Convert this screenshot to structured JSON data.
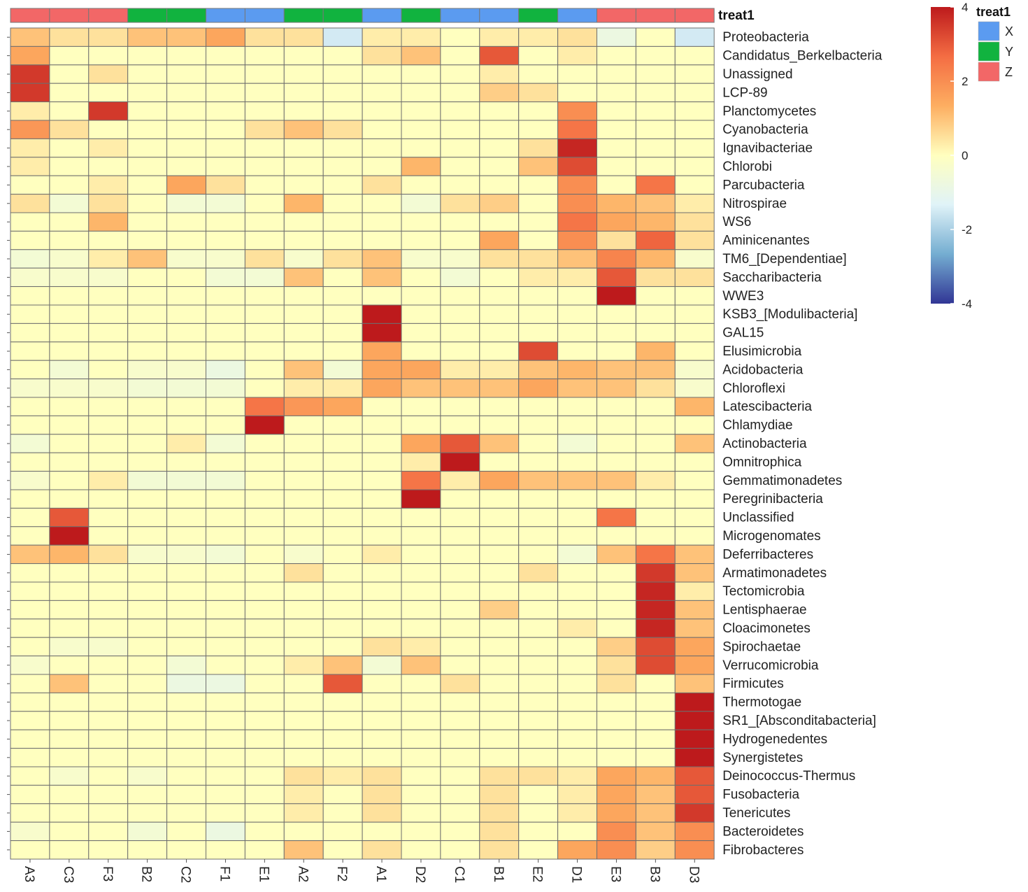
{
  "chart_data": {
    "type": "heatmap",
    "annotation_title": "treat1",
    "columns": [
      "A3",
      "C3",
      "F3",
      "B2",
      "C2",
      "F1",
      "E1",
      "A2",
      "F2",
      "A1",
      "D2",
      "C1",
      "B1",
      "E2",
      "D1",
      "E3",
      "B3",
      "D3"
    ],
    "column_groups": [
      "Z",
      "Z",
      "Z",
      "Y",
      "Y",
      "X",
      "X",
      "Y",
      "Y",
      "X",
      "Y",
      "X",
      "X",
      "Y",
      "X",
      "Z",
      "Z",
      "Z"
    ],
    "rows": [
      "Proteobacteria",
      "Candidatus_Berkelbacteria",
      "Unassigned",
      "LCP-89",
      "Planctomycetes",
      "Cyanobacteria",
      "Ignavibacteriae",
      "Chlorobi",
      "Parcubacteria",
      "Nitrospirae",
      "WS6",
      "Aminicenantes",
      "TM6_[Dependentiae]",
      "Saccharibacteria",
      "WWE3",
      "KSB3_[Modulibacteria]",
      "GAL15",
      "Elusimicrobia",
      "Acidobacteria",
      "Chloroflexi",
      "Latescibacteria",
      "Chlamydiae",
      "Actinobacteria",
      "Omnitrophica",
      "Gemmatimonadetes",
      "Peregrinibacteria",
      "Unclassified",
      "Microgenomates",
      "Deferribacteres",
      "Armatimonadetes",
      "Tectomicrobia",
      "Lentisphaerae",
      "Cloacimonetes",
      "Spirochaetae",
      "Verrucomicrobia",
      "Firmicutes",
      "Thermotogae",
      "SR1_[Absconditabacteria]",
      "Hydrogenedentes",
      "Synergistetes",
      "Deinococcus-Thermus",
      "Fusobacteria",
      "Tenericutes",
      "Bacteroidetes",
      "Fibrobacteres"
    ],
    "values": [
      [
        1,
        0.5,
        0.5,
        1,
        1,
        1.5,
        0.5,
        0.5,
        -1.5,
        0.3,
        0.3,
        0,
        0.3,
        0.3,
        0.5,
        -0.8,
        0,
        -1.5
      ],
      [
        1.5,
        0,
        0,
        0,
        0,
        0,
        0,
        0,
        0,
        0.5,
        1,
        0,
        3,
        0,
        0.3,
        0,
        0,
        0
      ],
      [
        3.5,
        0,
        0.5,
        0,
        0,
        0,
        0,
        0,
        0,
        0,
        0,
        0,
        0.3,
        0,
        0,
        0,
        0,
        0
      ],
      [
        3.5,
        0,
        0,
        0,
        0,
        0,
        0,
        0,
        0,
        0,
        0,
        0,
        0.8,
        0.5,
        0,
        0,
        0,
        0
      ],
      [
        0.3,
        0,
        3.5,
        0,
        0,
        0,
        0,
        0,
        0,
        0,
        0,
        0,
        0,
        0,
        2,
        0,
        0,
        0
      ],
      [
        1.8,
        0.5,
        0,
        0,
        0,
        0,
        0.5,
        1,
        0.5,
        0,
        0,
        0,
        0,
        0,
        2.5,
        0,
        0,
        0
      ],
      [
        0.3,
        0,
        0.3,
        0,
        0,
        0,
        0,
        0,
        0,
        0,
        0,
        0,
        0,
        0.5,
        3.8,
        0,
        0,
        0
      ],
      [
        0.3,
        0,
        0,
        0,
        0,
        0,
        0,
        0,
        0,
        0,
        1.2,
        0,
        0,
        1,
        3.2,
        0,
        0,
        0
      ],
      [
        0,
        0,
        0.3,
        0,
        1.5,
        0.5,
        0,
        0,
        0,
        0.5,
        0,
        0,
        0,
        0,
        2,
        0,
        2.5,
        0
      ],
      [
        0.5,
        -0.5,
        0.5,
        0,
        -0.5,
        -0.5,
        0,
        1.2,
        0,
        0,
        -0.5,
        0.5,
        0.8,
        0,
        2,
        1.2,
        1,
        0.3
      ],
      [
        0,
        0,
        1.2,
        0,
        0,
        0,
        0,
        0,
        0,
        0,
        0,
        0,
        0,
        0,
        2.5,
        1.5,
        1.2,
        0.5
      ],
      [
        0,
        0,
        0,
        0,
        0,
        0,
        0,
        0,
        0,
        0,
        0,
        0,
        1.5,
        0,
        2,
        0.5,
        2.8,
        0.5
      ],
      [
        -0.5,
        -0.3,
        0.3,
        1,
        -0.3,
        -0.3,
        0.5,
        -0.3,
        0.5,
        1,
        -0.3,
        -0.3,
        0.5,
        0.5,
        1,
        2.2,
        1.2,
        -0.3
      ],
      [
        -0.3,
        -0.3,
        -0.3,
        0,
        0,
        -0.5,
        -0.5,
        1,
        0,
        1,
        0,
        -0.5,
        0,
        0.3,
        0.3,
        3,
        0.5,
        0.5
      ],
      [
        0,
        0,
        0,
        0,
        0,
        0,
        0,
        0,
        0,
        0,
        0,
        0,
        0,
        0,
        0,
        4,
        0,
        0
      ],
      [
        0,
        0,
        0,
        0,
        0,
        0,
        0,
        0,
        0,
        4,
        0,
        0,
        0,
        0,
        0,
        0,
        0,
        0
      ],
      [
        0,
        0,
        0,
        0,
        0,
        0,
        0,
        0,
        0,
        4,
        0,
        0,
        0,
        0,
        0,
        0,
        0,
        0
      ],
      [
        0,
        0,
        0,
        0,
        0,
        0,
        0,
        0,
        0,
        1.5,
        0,
        0,
        0,
        3.2,
        0,
        0,
        1.2,
        0
      ],
      [
        0,
        -0.5,
        0,
        -0.3,
        -0.3,
        -0.8,
        0,
        1,
        -0.5,
        1.5,
        1.5,
        0.3,
        0.3,
        1,
        1.2,
        1,
        1,
        -0.3
      ],
      [
        -0.3,
        -0.3,
        -0.3,
        -0.5,
        -0.5,
        -0.5,
        0,
        0.3,
        0.3,
        1.5,
        1,
        1,
        1,
        1.5,
        1,
        1,
        0.5,
        -0.3
      ],
      [
        0,
        0,
        0,
        0,
        0,
        0,
        2.5,
        1.8,
        1.5,
        0,
        0,
        0,
        0,
        0,
        0,
        0,
        0,
        1.2
      ],
      [
        0,
        0,
        0,
        0,
        0,
        0,
        4,
        0,
        0,
        0,
        0,
        0,
        0,
        0,
        0,
        0,
        0,
        0
      ],
      [
        -0.5,
        0,
        0,
        0,
        0.3,
        -0.5,
        0,
        0,
        0,
        0,
        1.5,
        3,
        1,
        0,
        -0.5,
        0,
        0,
        1
      ],
      [
        0,
        0,
        0,
        0,
        0,
        0,
        0,
        0,
        0,
        0,
        0.3,
        4,
        0,
        0,
        0,
        0,
        0,
        0
      ],
      [
        -0.3,
        0,
        0.3,
        -0.5,
        -0.5,
        -0.5,
        0,
        0,
        0,
        0,
        2.5,
        0.3,
        1.5,
        1,
        1,
        1,
        0.3,
        0
      ],
      [
        0,
        0,
        0,
        0,
        0,
        0,
        0,
        0,
        0,
        0,
        4,
        0,
        0,
        0,
        0,
        0,
        0,
        0
      ],
      [
        0,
        3,
        0,
        0,
        0,
        0,
        0,
        0,
        0,
        0,
        0,
        0,
        0,
        0,
        0,
        2.5,
        0,
        0
      ],
      [
        0,
        4,
        0,
        0,
        0,
        0,
        0,
        0,
        0,
        0,
        0,
        0,
        0,
        0,
        0,
        0,
        0,
        0
      ],
      [
        1,
        1.2,
        0.5,
        -0.3,
        -0.3,
        -0.5,
        0,
        -0.3,
        0,
        0.3,
        0,
        0,
        0,
        0,
        -0.5,
        1,
        2.5,
        1
      ],
      [
        0,
        0,
        0,
        0,
        0,
        0,
        0,
        0.5,
        0,
        0,
        0,
        0,
        0,
        0.5,
        0,
        0,
        3.5,
        1
      ],
      [
        0,
        0,
        0,
        0,
        0,
        0,
        0,
        0,
        0,
        0,
        0,
        0,
        0,
        0,
        0,
        0,
        3.8,
        0.3
      ],
      [
        0,
        0,
        0,
        0,
        0,
        0,
        0,
        0,
        0,
        0,
        0,
        0,
        0.8,
        0,
        0,
        0,
        3.8,
        1
      ],
      [
        0,
        0,
        0,
        0,
        0,
        0,
        0,
        0,
        0,
        0,
        0,
        0,
        0,
        0,
        0.3,
        0,
        3.8,
        1
      ],
      [
        0,
        -0.3,
        -0.3,
        0,
        0,
        0,
        0,
        0,
        0,
        0.5,
        0.3,
        0,
        0,
        0,
        0,
        0.8,
        3.2,
        1.5
      ],
      [
        -0.3,
        0,
        0,
        0,
        -0.5,
        0,
        0,
        0.3,
        1,
        -0.5,
        1,
        0,
        0,
        0,
        0,
        0.5,
        3.2,
        1.5
      ],
      [
        0,
        1,
        0,
        0,
        -0.8,
        -0.8,
        0,
        0,
        3,
        0,
        0,
        0.5,
        0,
        0,
        0,
        0.5,
        0,
        1
      ],
      [
        0,
        0,
        0,
        0,
        0,
        0,
        0,
        0,
        0,
        0,
        0,
        0,
        0,
        0,
        0,
        0,
        0,
        4
      ],
      [
        0,
        0,
        0,
        0,
        0,
        0,
        0,
        0,
        0,
        0,
        0,
        0,
        0,
        0,
        0,
        0,
        0,
        4
      ],
      [
        0,
        0,
        0,
        0,
        0,
        0,
        0,
        0,
        0,
        0,
        0,
        0,
        0,
        0,
        0,
        0,
        0,
        4
      ],
      [
        0,
        0,
        0,
        0,
        0,
        0,
        0,
        0,
        0,
        0,
        0,
        0,
        0,
        0,
        0,
        0,
        0,
        4
      ],
      [
        0,
        -0.3,
        0,
        -0.3,
        0,
        0,
        0,
        0.5,
        0.3,
        0.5,
        0,
        0,
        0.5,
        0.5,
        0.3,
        1.5,
        1.2,
        3
      ],
      [
        0,
        0,
        0,
        0,
        0,
        0,
        0,
        0.3,
        0,
        0.5,
        0,
        0,
        0.5,
        0,
        0.3,
        1.5,
        1,
        3
      ],
      [
        0,
        0,
        0,
        0,
        0,
        0,
        0,
        0.3,
        0,
        0.5,
        0,
        0,
        0.5,
        0,
        0.3,
        1.5,
        1,
        3.5
      ],
      [
        -0.3,
        0,
        0,
        -0.5,
        0,
        -0.8,
        0,
        0,
        0,
        0,
        0,
        0,
        0.5,
        0,
        0,
        2,
        1,
        2
      ],
      [
        0,
        0,
        0,
        0,
        0,
        0,
        0,
        1,
        0,
        0.5,
        0,
        0,
        0.5,
        0,
        1.5,
        2,
        0.8,
        2
      ]
    ],
    "value_range": [
      -4,
      4
    ],
    "colorbar_ticks": [
      "-4",
      "-2",
      "0",
      "2",
      "4"
    ],
    "legend": {
      "title": "treat1",
      "entries": [
        {
          "label": "X",
          "color": "#5b9bf0"
        },
        {
          "label": "Y",
          "color": "#11b33f"
        },
        {
          "label": "Z",
          "color": "#f26767"
        }
      ]
    },
    "color_scale": [
      "#313695",
      "#74add1",
      "#e0f3f8",
      "#ffffbf",
      "#fdae61",
      "#f46d43",
      "#bd1a1c"
    ],
    "grid": true,
    "legend_position": "right"
  }
}
